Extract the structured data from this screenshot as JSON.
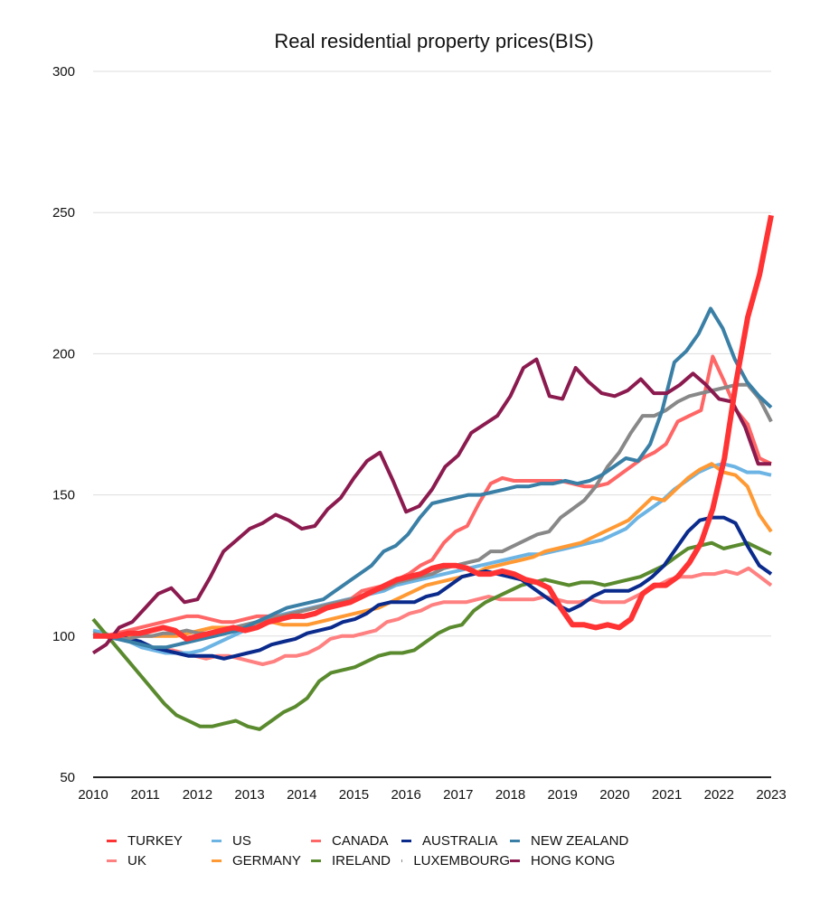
{
  "chart_data": {
    "type": "line",
    "title": "Real residential property prices(BIS)",
    "xlabel": "",
    "ylabel": "",
    "xlim": [
      2010,
      2023
    ],
    "ylim": [
      50,
      300
    ],
    "yticks": [
      50,
      100,
      150,
      200,
      250,
      300
    ],
    "xticks": [
      2010,
      2011,
      2012,
      2013,
      2014,
      2015,
      2016,
      2017,
      2018,
      2019,
      2020,
      2021,
      2022,
      2023
    ],
    "grid": "horizontal",
    "legend_position": "bottom",
    "x_step": 0.25,
    "series": [
      {
        "name": "TURKEY",
        "color": "#ff3333",
        "emphasis": true,
        "values": [
          100,
          100,
          100,
          101,
          101,
          102,
          103,
          102,
          99,
          100,
          101,
          102,
          103,
          102,
          103,
          105,
          106,
          107,
          107,
          108,
          110,
          111,
          112,
          114,
          116,
          118,
          120,
          121,
          122,
          124,
          125,
          125,
          124,
          122,
          122,
          123,
          122,
          120,
          119,
          117,
          110,
          104,
          104,
          103,
          104,
          103,
          106,
          115,
          118,
          118,
          121,
          126,
          133,
          145,
          163,
          190,
          213,
          228,
          249
        ]
      },
      {
        "name": "UK",
        "color": "#ff8080",
        "values": [
          100,
          100,
          100,
          99,
          97,
          96,
          95,
          95,
          94,
          93,
          92,
          93,
          93,
          92,
          91,
          90,
          91,
          93,
          93,
          94,
          96,
          99,
          100,
          100,
          101,
          102,
          105,
          106,
          108,
          109,
          111,
          112,
          112,
          112,
          113,
          114,
          113,
          113,
          113,
          113,
          114,
          113,
          112,
          112,
          113,
          112,
          112,
          112,
          114,
          116,
          118,
          120,
          121,
          121,
          122,
          122,
          123,
          122,
          124,
          121,
          118
        ]
      },
      {
        "name": "US",
        "color": "#6cb4e4",
        "values": [
          102,
          101,
          99,
          98,
          96,
          95,
          94,
          94,
          94,
          95,
          97,
          99,
          101,
          103,
          105,
          107,
          108,
          109,
          110,
          111,
          112,
          113,
          114,
          115,
          116,
          118,
          119,
          120,
          121,
          122,
          123,
          124,
          125,
          126,
          127,
          128,
          129,
          129,
          130,
          131,
          132,
          133,
          134,
          136,
          138,
          142,
          145,
          148,
          152,
          155,
          158,
          160,
          161,
          160,
          158,
          158,
          157
        ]
      },
      {
        "name": "GERMANY",
        "color": "#ff9933",
        "values": [
          100,
          100,
          100,
          100,
          100,
          100,
          100,
          100,
          101,
          102,
          103,
          103,
          103,
          104,
          105,
          105,
          104,
          104,
          104,
          105,
          106,
          107,
          108,
          109,
          110,
          112,
          114,
          116,
          118,
          119,
          120,
          121,
          122,
          124,
          125,
          126,
          127,
          128,
          130,
          131,
          132,
          133,
          135,
          137,
          139,
          141,
          145,
          149,
          148,
          152,
          156,
          159,
          161,
          158,
          157,
          153,
          143,
          137
        ]
      },
      {
        "name": "CANADA",
        "color": "#ff6666",
        "values": [
          100,
          100,
          101,
          102,
          103,
          104,
          105,
          106,
          107,
          107,
          106,
          105,
          105,
          106,
          107,
          107,
          107,
          108,
          109,
          110,
          111,
          112,
          113,
          116,
          117,
          118,
          120,
          122,
          125,
          127,
          133,
          137,
          139,
          147,
          154,
          156,
          155,
          155,
          155,
          155,
          155,
          154,
          153,
          153,
          154,
          157,
          160,
          163,
          165,
          168,
          176,
          178,
          180,
          199,
          190,
          180,
          175,
          163,
          161
        ]
      },
      {
        "name": "IRELAND",
        "color": "#5a8a2e",
        "values": [
          106,
          101,
          96,
          91,
          86,
          81,
          76,
          72,
          70,
          68,
          68,
          69,
          70,
          68,
          67,
          70,
          73,
          75,
          78,
          84,
          87,
          88,
          89,
          91,
          93,
          94,
          94,
          95,
          98,
          101,
          103,
          104,
          109,
          112,
          114,
          116,
          118,
          119,
          120,
          119,
          118,
          119,
          119,
          118,
          119,
          120,
          121,
          123,
          125,
          128,
          131,
          132,
          133,
          131,
          132,
          133,
          131,
          129
        ]
      },
      {
        "name": "AUSTRALIA",
        "color": "#0a2a8c",
        "values": [
          100,
          100,
          100,
          99,
          98,
          96,
          95,
          94,
          93,
          93,
          93,
          92,
          93,
          94,
          95,
          97,
          98,
          99,
          101,
          102,
          103,
          105,
          106,
          108,
          111,
          112,
          112,
          112,
          114,
          115,
          118,
          121,
          122,
          123,
          122,
          121,
          120,
          117,
          114,
          111,
          109,
          111,
          114,
          116,
          116,
          116,
          118,
          121,
          125,
          131,
          137,
          141,
          142,
          142,
          140,
          132,
          125,
          122
        ]
      },
      {
        "name": "LUXEMBOURG",
        "color": "#888888",
        "values": [
          101,
          100,
          99,
          99,
          100,
          100,
          101,
          101,
          102,
          101,
          101,
          102,
          103,
          104,
          105,
          106,
          107,
          108,
          109,
          110,
          111,
          112,
          113,
          114,
          116,
          117,
          119,
          120,
          121,
          122,
          124,
          125,
          126,
          127,
          130,
          130,
          132,
          134,
          136,
          137,
          142,
          145,
          148,
          153,
          160,
          165,
          172,
          178,
          178,
          180,
          183,
          185,
          186,
          187,
          188,
          189,
          189,
          184,
          176
        ]
      },
      {
        "name": "NEW ZEALAND",
        "color": "#3a7fa6",
        "values": [
          100,
          100,
          99,
          98,
          97,
          96,
          96,
          97,
          98,
          99,
          100,
          101,
          102,
          104,
          106,
          108,
          110,
          111,
          112,
          113,
          116,
          119,
          122,
          125,
          130,
          132,
          136,
          142,
          147,
          148,
          149,
          150,
          150,
          151,
          152,
          153,
          153,
          154,
          154,
          155,
          154,
          155,
          157,
          160,
          163,
          162,
          168,
          180,
          197,
          201,
          207,
          216,
          209,
          198,
          190,
          185,
          181
        ]
      },
      {
        "name": "HONG KONG",
        "color": "#8b1a4f",
        "values": [
          94,
          97,
          103,
          105,
          110,
          115,
          117,
          112,
          113,
          121,
          130,
          134,
          138,
          140,
          143,
          141,
          138,
          139,
          145,
          149,
          156,
          162,
          165,
          155,
          144,
          146,
          152,
          160,
          164,
          172,
          175,
          178,
          185,
          195,
          198,
          185,
          184,
          195,
          190,
          186,
          185,
          187,
          191,
          186,
          186,
          189,
          193,
          189,
          184,
          183,
          174,
          161,
          161
        ]
      }
    ]
  }
}
